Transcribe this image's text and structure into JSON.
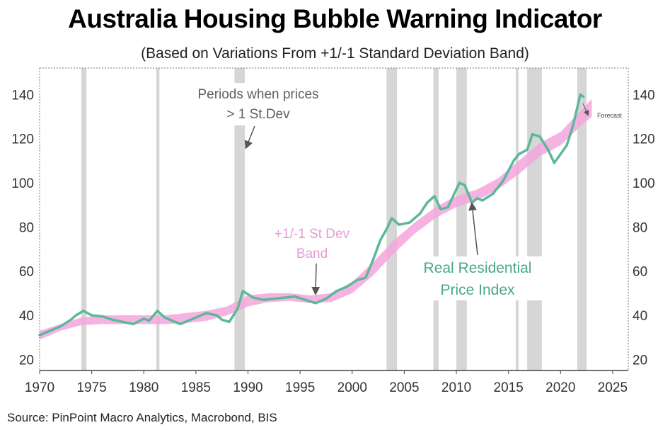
{
  "chart_data": {
    "type": "line",
    "title": "Australia Housing Bubble Warning Indicator",
    "subtitle": "(Based on Variations From +1/-1 Standard Deviation Band)",
    "source": "Source: PinPoint Macro Analytics, Macrobond, BIS",
    "xlim": [
      1970,
      2026.5
    ],
    "ylim": [
      15,
      152
    ],
    "x_ticks": [
      1970,
      1975,
      1980,
      1985,
      1990,
      1995,
      2000,
      2005,
      2010,
      2015,
      2020,
      2025
    ],
    "y_ticks": [
      20,
      40,
      60,
      80,
      100,
      120,
      140
    ],
    "y_axis": "both sides",
    "grid": false,
    "colors": {
      "series": "#5cb89a",
      "band": "#f4a6dc",
      "shade": "#d6d6d6",
      "band_label": "#e59bd7",
      "series_label": "#4aa889",
      "shade_label": "#606060"
    },
    "shaded_periods": [
      [
        1974.0,
        1974.5
      ],
      [
        1981.2,
        1981.5
      ],
      [
        1988.7,
        1989.7
      ],
      [
        2003.3,
        2004.3
      ],
      [
        2007.8,
        2008.3
      ],
      [
        2010.0,
        2011.0
      ],
      [
        2015.7,
        2015.9
      ],
      [
        2016.8,
        2018.2
      ],
      [
        2021.6,
        2022.5
      ]
    ],
    "band": {
      "name": "+1/-1 St Dev Band",
      "x": [
        1970,
        1972,
        1974,
        1976,
        1978,
        1980,
        1982,
        1984,
        1986,
        1988,
        1990,
        1992,
        1994,
        1996,
        1998,
        2000,
        2002,
        2004,
        2006,
        2008,
        2010,
        2012,
        2014,
        2016,
        2018,
        2020,
        2022,
        2023
      ],
      "upper": [
        33,
        36,
        39,
        40,
        40,
        40,
        40,
        41,
        42,
        44,
        49,
        50,
        50,
        49,
        50,
        55,
        64,
        74,
        82,
        89,
        94,
        97,
        102,
        110,
        118,
        123,
        133,
        138
      ],
      "lower": [
        29,
        33,
        35.5,
        36,
        36,
        36,
        36,
        36.5,
        37.5,
        40,
        44,
        46,
        46.5,
        45.5,
        46,
        50,
        58,
        68,
        77,
        84,
        89,
        92,
        97,
        104,
        112,
        117,
        126,
        130
      ]
    },
    "series": [
      {
        "name": "Real Residential Price Index",
        "x": [
          1970,
          1971,
          1972,
          1973,
          1973.5,
          1974.2,
          1975,
          1976,
          1977,
          1978,
          1979,
          1980,
          1980.5,
          1981.3,
          1982,
          1983,
          1983.5,
          1984,
          1985,
          1986,
          1987,
          1987.5,
          1988.2,
          1989,
          1989.5,
          1990.5,
          1991.5,
          1992.5,
          1993.5,
          1994.5,
          1995.5,
          1996.5,
          1997.5,
          1998.5,
          1999.5,
          2000.5,
          2001.3,
          2002,
          2002.7,
          2003.3,
          2003.8,
          2004.5,
          2005.5,
          2006.5,
          2007.2,
          2007.9,
          2008.5,
          2009.2,
          2010.3,
          2010.8,
          2011.5,
          2012,
          2012.5,
          2013.5,
          2014.5,
          2015.5,
          2016,
          2016.8,
          2017.3,
          2018,
          2018.8,
          2019.4,
          2020,
          2020.6,
          2021.2,
          2021.9,
          2022.2
        ],
        "values": [
          31,
          33,
          35,
          38,
          40,
          42,
          40,
          39.5,
          38,
          37,
          36,
          38.5,
          37.5,
          42,
          39,
          37,
          36,
          37,
          39,
          41,
          40,
          38,
          37,
          43,
          51,
          48,
          47,
          47.5,
          48,
          48.5,
          47,
          45.5,
          47.5,
          51,
          53,
          56,
          57,
          65,
          74,
          79,
          84,
          81,
          82,
          86,
          91,
          94,
          88,
          89,
          100,
          99,
          91,
          93,
          92,
          95,
          101,
          110,
          113,
          115,
          122,
          121,
          115,
          109,
          113,
          117,
          126,
          140,
          139
        ]
      }
    ],
    "annotations": {
      "shade_label_line1": "Periods when prices",
      "shade_label_line2": "> 1 St.Dev",
      "band_label_line1": "+1/-1 St Dev",
      "band_label_line2": "Band",
      "series_label_line1": "Real Residential",
      "series_label_line2": "Price Index",
      "forecast": "Forecast"
    }
  }
}
